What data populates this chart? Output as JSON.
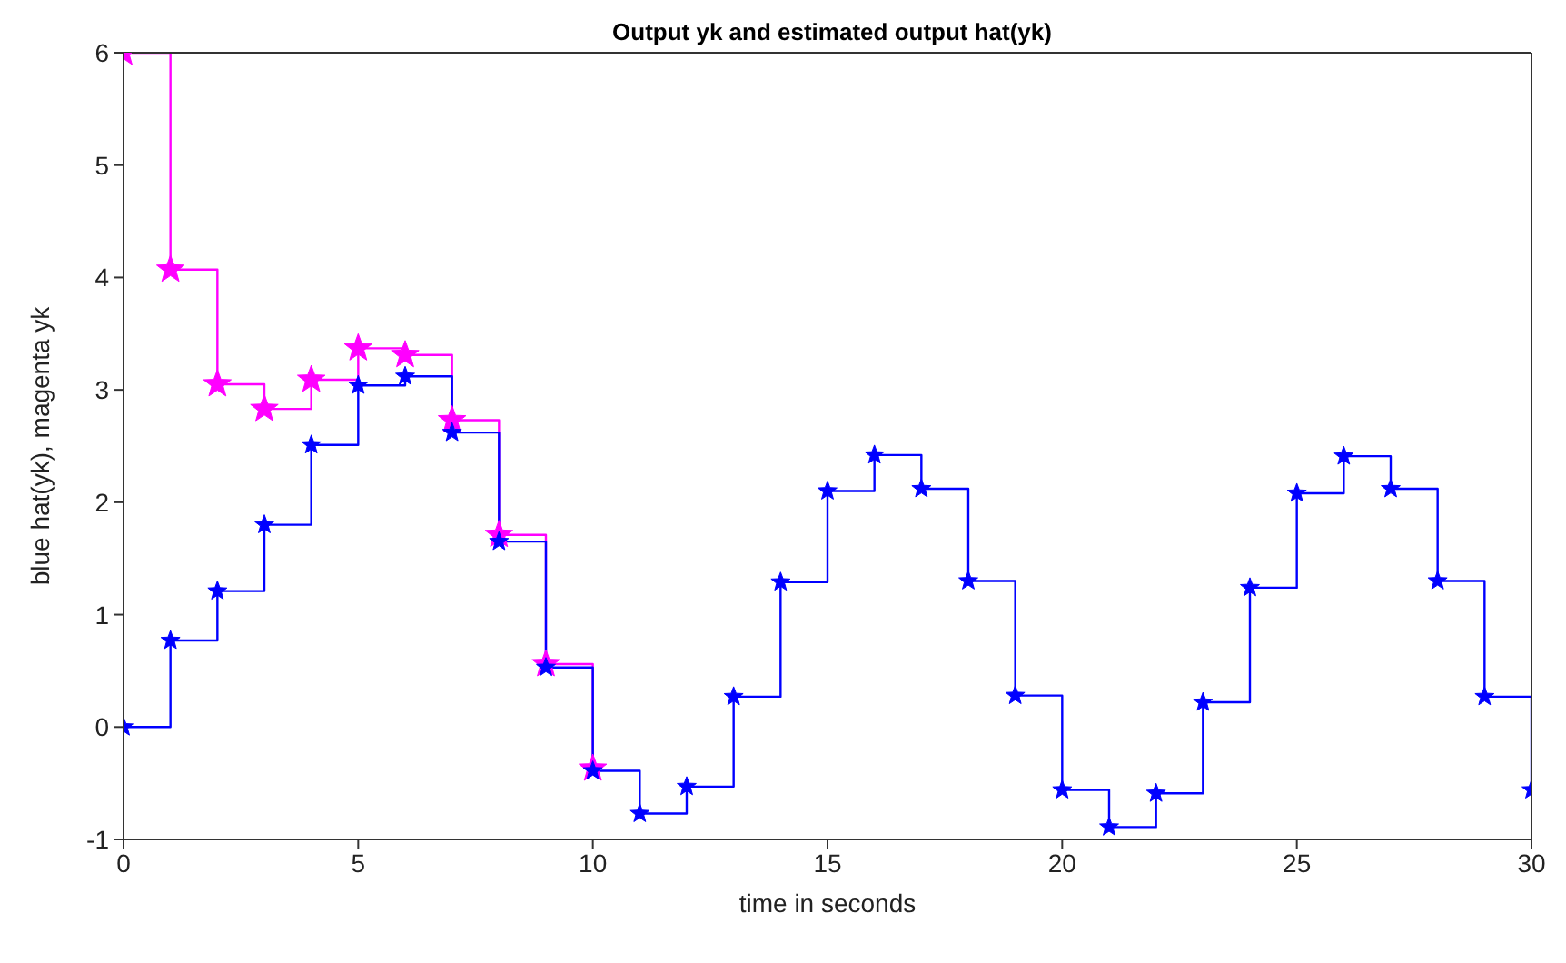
{
  "chart_data": {
    "type": "step",
    "title": "Output yk and estimated output hat(yk)",
    "xlabel": "time in seconds",
    "ylabel": "blue hat(yk),  magenta yk",
    "x": [
      0,
      1,
      2,
      3,
      4,
      5,
      6,
      7,
      8,
      9,
      10,
      11,
      12,
      13,
      14,
      15,
      16,
      17,
      18,
      19,
      20,
      21,
      22,
      23,
      24,
      25,
      26,
      27,
      28,
      29,
      30
    ],
    "series": [
      {
        "color": "#ff00ff",
        "values": [
          6,
          4.07,
          3.05,
          2.83,
          3.09,
          3.37,
          3.31,
          2.73,
          1.71,
          0.56,
          -0.37,
          null,
          null,
          null,
          null,
          null,
          null,
          null,
          null,
          null,
          null,
          null,
          null,
          null,
          null,
          null,
          null,
          null,
          null,
          null,
          null
        ]
      },
      {
        "color": "#0000ff",
        "values": [
          0,
          0.77,
          1.21,
          1.8,
          2.51,
          3.04,
          3.12,
          2.62,
          1.65,
          0.53,
          -0.39,
          -0.77,
          -0.53,
          0.27,
          1.29,
          2.1,
          2.42,
          2.12,
          1.3,
          0.28,
          -0.56,
          -0.89,
          -0.59,
          0.22,
          1.24,
          2.08,
          2.41,
          2.12,
          1.3,
          0.27,
          -0.56
        ]
      }
    ],
    "xlim": [
      0,
      30
    ],
    "xticks": [
      0,
      5,
      10,
      15,
      20,
      25,
      30
    ],
    "ylim": [
      -1,
      6
    ],
    "yticks": [
      -1,
      0,
      1,
      2,
      3,
      4,
      5,
      6
    ],
    "grid": false,
    "legend": false,
    "marker": "star",
    "line_style": "solid"
  }
}
